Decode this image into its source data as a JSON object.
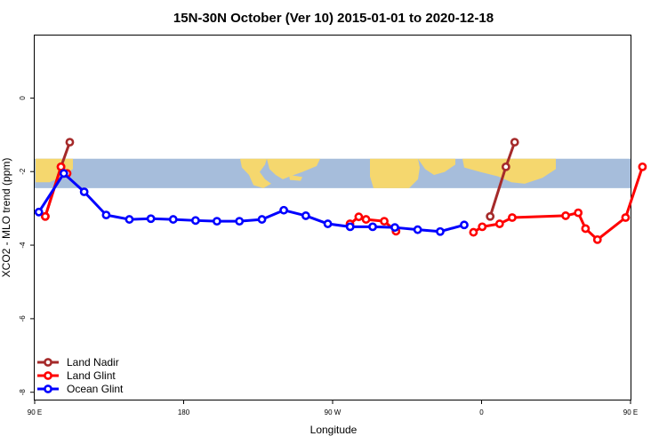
{
  "chart_data": {
    "type": "line",
    "title": "15N-30N October (Ver 10)   2015-01-01 to 2020-12-18",
    "xlabel": "Longitude",
    "ylabel": "XCO2 - MLO trend (ppm)",
    "xlim": [
      90,
      450
    ],
    "ylim": [
      -8.2,
      1.7
    ],
    "x_ticks": [
      {
        "value": 90,
        "label": "90 E"
      },
      {
        "value": 180,
        "label": "180"
      },
      {
        "value": 270,
        "label": "90 W"
      },
      {
        "value": 360,
        "label": "0"
      },
      {
        "value": 450,
        "label": "90 E"
      },
      {
        "value": 540,
        "label": "180"
      }
    ],
    "y_ticks": [
      {
        "value": -8,
        "label": "-8"
      },
      {
        "value": -6,
        "label": "-6"
      },
      {
        "value": -4,
        "label": "-4"
      },
      {
        "value": -2,
        "label": "-2"
      },
      {
        "value": 0,
        "label": "0"
      }
    ],
    "map_band": {
      "y_top": -1.65,
      "y_bottom": -2.45,
      "ocean_color": "#a6bddb",
      "land_color": "#f5d76e"
    },
    "legend_position": "bottom-left",
    "series": [
      {
        "name": "Land Nadir",
        "color": "#a52a2a",
        "x": [
          96.4,
          105.9,
          111.2,
          365.2,
          374.7,
          380
        ],
        "y": [
          -3.22,
          -1.87,
          -1.2,
          -3.22,
          -1.87,
          -1.2
        ]
      },
      {
        "name": "Land Glint",
        "color": "#ff0000",
        "x": [
          96.4,
          105.9,
          109.6,
          280.5,
          285.8,
          290.2,
          301.2,
          308.3,
          355.1,
          360.4,
          370.9,
          378.5,
          410.8,
          418.4,
          422.8,
          430.0,
          447.0,
          457.2
        ],
        "y": [
          -3.22,
          -1.87,
          -2.05,
          -3.42,
          -3.23,
          -3.3,
          -3.35,
          -3.62,
          -3.65,
          -3.5,
          -3.42,
          -3.25,
          -3.2,
          -3.12,
          -3.55,
          -3.85,
          -3.25,
          -1.87
        ]
      },
      {
        "name": "Ocean Glint",
        "color": "#0000ff",
        "x": [
          92.5,
          107.6,
          119.9,
          133.2,
          147.2,
          160.2,
          173.7,
          187.2,
          200.1,
          213.7,
          227.3,
          240.5,
          253.8,
          267.1,
          280.6,
          294.2,
          307.6,
          321.4,
          335.0,
          349.5
        ],
        "y": [
          -3.1,
          -2.05,
          -2.55,
          -3.18,
          -3.3,
          -3.28,
          -3.3,
          -3.33,
          -3.35,
          -3.35,
          -3.3,
          -3.05,
          -3.2,
          -3.42,
          -3.5,
          -3.5,
          -3.52,
          -3.58,
          -3.63,
          -3.45
        ]
      }
    ]
  }
}
